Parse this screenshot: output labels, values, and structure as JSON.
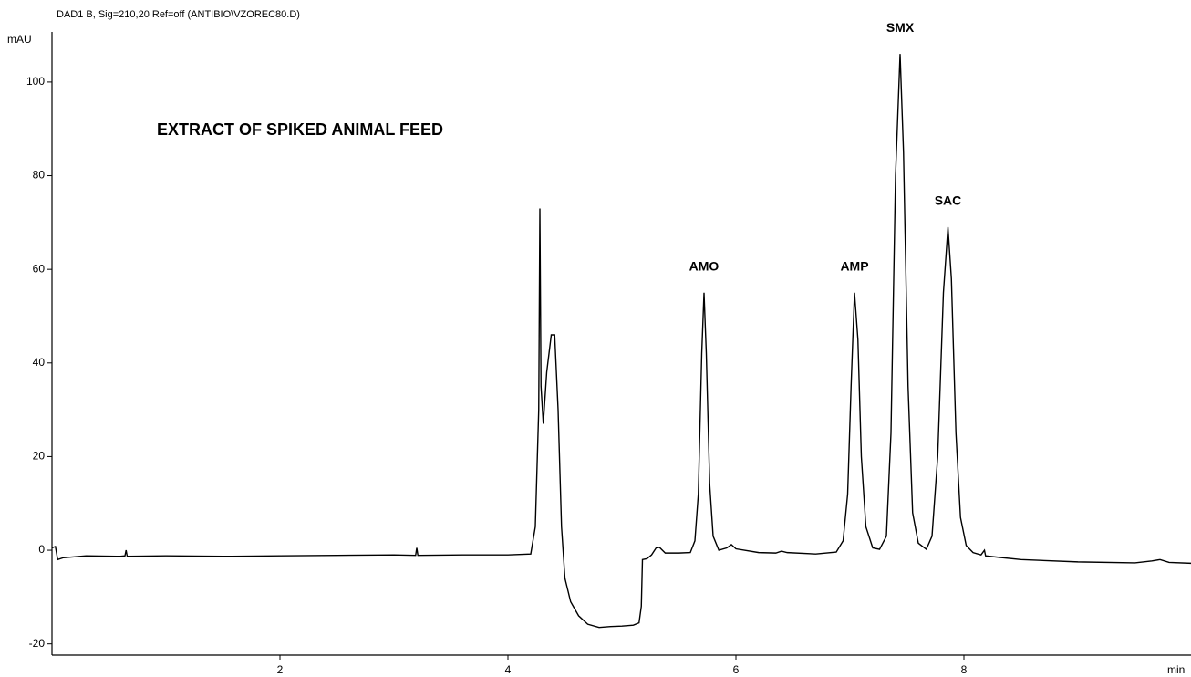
{
  "chart_data": {
    "type": "line",
    "title": "DAD1 B, Sig=210,20 Ref=off (ANTIBIO\\VZOREC80.D)",
    "inset_text": "EXTRACT OF SPIKED ANIMAL FEED",
    "y_label": "mAU",
    "x_label": "min",
    "color": "#000000",
    "xlim": [
      0,
      10
    ],
    "ylim": [
      -22.4,
      110.7
    ],
    "xticks": [
      2,
      4,
      6,
      8
    ],
    "yticks": [
      -20,
      0,
      20,
      40,
      60,
      80,
      100
    ],
    "annotations": [
      {
        "text": "AMO",
        "x": 5.72,
        "y": 55
      },
      {
        "text": "AMP",
        "x": 7.04,
        "y": 55
      },
      {
        "text": "SMX",
        "x": 7.44,
        "y": 106
      },
      {
        "text": "SAC",
        "x": 7.86,
        "y": 69
      }
    ],
    "x": [
      0,
      0.03,
      0.05,
      0.1,
      0.3,
      0.6,
      0.64,
      0.65,
      0.66,
      1.0,
      1.5,
      2.0,
      2.5,
      3.0,
      3.19,
      3.2,
      3.21,
      3.6,
      4.0,
      4.2,
      4.24,
      4.27,
      4.28,
      4.29,
      4.31,
      4.34,
      4.38,
      4.41,
      4.44,
      4.47,
      4.5,
      4.55,
      4.62,
      4.7,
      4.8,
      4.9,
      5.0,
      5.1,
      5.15,
      5.17,
      5.18,
      5.22,
      5.26,
      5.3,
      5.33,
      5.38,
      5.5,
      5.6,
      5.64,
      5.67,
      5.7,
      5.72,
      5.74,
      5.77,
      5.8,
      5.85,
      5.92,
      5.96,
      6.0,
      6.2,
      6.35,
      6.4,
      6.45,
      6.7,
      6.88,
      6.94,
      6.98,
      7.01,
      7.04,
      7.07,
      7.1,
      7.14,
      7.2,
      7.26,
      7.32,
      7.36,
      7.4,
      7.44,
      7.47,
      7.51,
      7.55,
      7.6,
      7.67,
      7.72,
      7.77,
      7.82,
      7.86,
      7.89,
      7.93,
      7.97,
      8.02,
      8.08,
      8.15,
      8.18,
      8.19,
      8.3,
      8.5,
      9.0,
      9.5,
      9.65,
      9.72,
      9.8,
      10
    ],
    "values": [
      0.5,
      0.8,
      -2,
      -1.6,
      -1.2,
      -1.3,
      -1.2,
      0,
      -1.3,
      -1.2,
      -1.3,
      -1.2,
      -1.1,
      -1.0,
      -1.1,
      0.5,
      -1.1,
      -1.0,
      -1.0,
      -0.8,
      5,
      30,
      73,
      35,
      27,
      38,
      46,
      46,
      30,
      5,
      -6,
      -11,
      -14,
      -15.8,
      -16.5,
      -16.3,
      -16.2,
      -16,
      -15.5,
      -12,
      -2,
      -1.8,
      -1,
      0.5,
      0.6,
      -0.6,
      -0.6,
      -0.5,
      2,
      12,
      42,
      55,
      42,
      14,
      3,
      0,
      0.5,
      1.2,
      0.3,
      -0.5,
      -0.6,
      -0.2,
      -0.5,
      -0.8,
      -0.4,
      2,
      12,
      35,
      55,
      45,
      20,
      5,
      0.5,
      0.2,
      3,
      25,
      80,
      106,
      85,
      35,
      8,
      1.5,
      0.2,
      3,
      20,
      55,
      69,
      58,
      25,
      7,
      1,
      -0.5,
      -1,
      0,
      -1.2,
      -1.5,
      -2,
      -2.5,
      -2.7,
      -2.3,
      -2,
      -2.6,
      -2.8
    ]
  }
}
